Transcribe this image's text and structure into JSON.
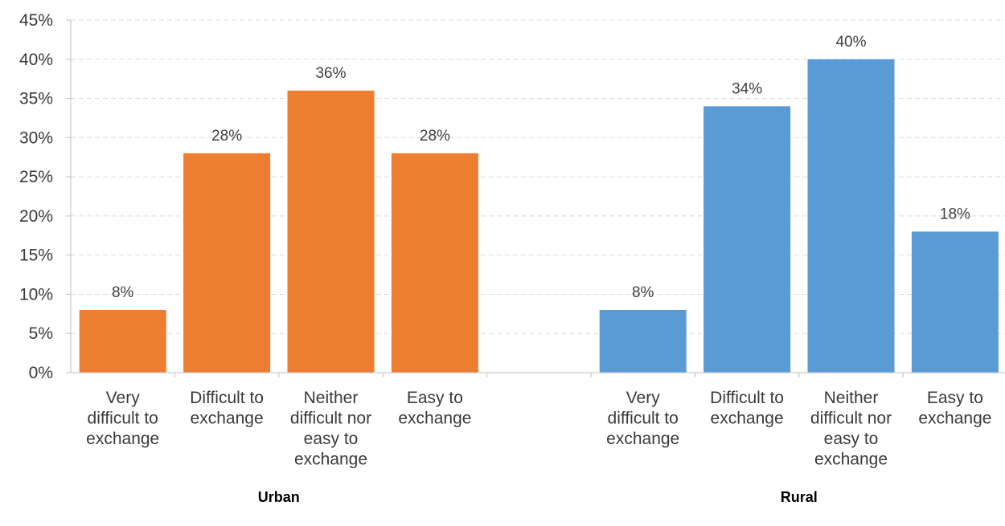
{
  "chart_data": {
    "type": "bar",
    "ylim": [
      0,
      45
    ],
    "y_ticks": [
      "0%",
      "5%",
      "10%",
      "15%",
      "20%",
      "25%",
      "30%",
      "35%",
      "40%",
      "45%"
    ],
    "grid": true,
    "groups": [
      {
        "name": "Urban",
        "color": "#ED7D31",
        "categories": [
          [
            "Very",
            "difficult to",
            "exchange"
          ],
          [
            "Difficult to",
            "exchange"
          ],
          [
            "Neither",
            "difficult nor",
            "easy to",
            "exchange"
          ],
          [
            "Easy to",
            "exchange"
          ]
        ],
        "values": [
          8,
          28,
          36,
          28
        ],
        "labels": [
          "8%",
          "28%",
          "36%",
          "28%"
        ]
      },
      {
        "name": "Rural",
        "color": "#5B9BD5",
        "categories": [
          [
            "Very",
            "difficult to",
            "exchange"
          ],
          [
            "Difficult to",
            "exchange"
          ],
          [
            "Neither",
            "difficult nor",
            "easy to",
            "exchange"
          ],
          [
            "Easy to",
            "exchange"
          ]
        ],
        "values": [
          8,
          34,
          40,
          18
        ],
        "labels": [
          "8%",
          "34%",
          "40%",
          "18%"
        ]
      }
    ]
  }
}
